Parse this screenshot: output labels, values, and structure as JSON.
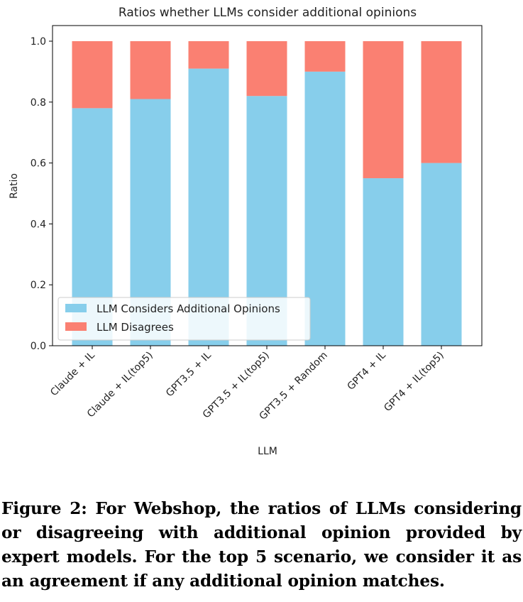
{
  "chart_data": {
    "type": "bar",
    "stacked": true,
    "title": "Ratios whether LLMs consider additional opinions",
    "xlabel": "LLM",
    "ylabel": "Ratio",
    "ylim": [
      0,
      1.0
    ],
    "yticks": [
      "0.0",
      "0.2",
      "0.4",
      "0.6",
      "0.8",
      "1.0"
    ],
    "categories": [
      "Claude + IL",
      "Claude + IL(top5)",
      "GPT3.5 + IL",
      "GPT3.5 + IL(top5)",
      "GPT3.5 + Random",
      "GPT4 + IL",
      "GPT4 + IL(top5)"
    ],
    "series": [
      {
        "name": "LLM Considers Additional Opinions",
        "color": "#87ceeb",
        "values": [
          0.78,
          0.81,
          0.91,
          0.82,
          0.9,
          0.55,
          0.6
        ]
      },
      {
        "name": "LLM Disagrees",
        "color": "#fa8072",
        "values": [
          0.22,
          0.19,
          0.09,
          0.18,
          0.1,
          0.45,
          0.4
        ]
      }
    ],
    "legend_position": "lower-left"
  },
  "caption": "Figure 2: For Webshop, the ratios of LLMs considering or disagreeing with additional opinion provided by expert models. For the top 5 scenario, we consider it as an agreement if any additional opinion matches."
}
